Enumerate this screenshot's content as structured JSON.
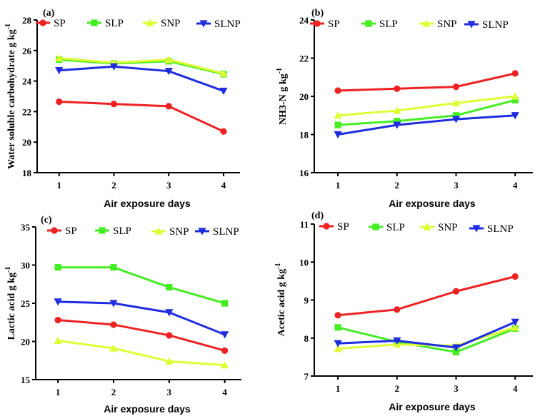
{
  "chart_data": [
    {
      "type": "line",
      "panel_label": "(a)",
      "x": [
        1,
        2,
        3,
        4
      ],
      "xlabel": "Air exposure days",
      "ylabel": "Water soluble carbohydrate g kg",
      "ylabel_sup": "-1",
      "ylim": [
        18,
        28
      ],
      "yticks": [
        18,
        20,
        22,
        24,
        26,
        28
      ],
      "legend": "top",
      "series": [
        {
          "name": "SP",
          "values": [
            22.65,
            22.5,
            22.35,
            20.7
          ]
        },
        {
          "name": "SLP",
          "values": [
            25.4,
            25.15,
            25.3,
            24.45
          ]
        },
        {
          "name": "SNP",
          "values": [
            25.5,
            25.2,
            25.4,
            24.5
          ]
        },
        {
          "name": "SLNP",
          "values": [
            24.7,
            24.95,
            24.65,
            23.35
          ]
        }
      ]
    },
    {
      "type": "line",
      "panel_label": "(b)",
      "x": [
        1,
        2,
        3,
        4
      ],
      "xlabel": "Air exposure days",
      "ylabel": "NH3-N g kg",
      "ylabel_sup": "-1",
      "ylim": [
        16,
        24
      ],
      "yticks": [
        16,
        18,
        20,
        22,
        24
      ],
      "legend": "top",
      "series": [
        {
          "name": "SP",
          "values": [
            20.3,
            20.4,
            20.5,
            21.2
          ]
        },
        {
          "name": "SLP",
          "values": [
            18.5,
            18.7,
            19.0,
            19.8
          ]
        },
        {
          "name": "SNP",
          "values": [
            19.0,
            19.25,
            19.65,
            20.0
          ]
        },
        {
          "name": "SLNP",
          "values": [
            18.0,
            18.5,
            18.8,
            19.0
          ]
        }
      ]
    },
    {
      "type": "line",
      "panel_label": "(c)",
      "x": [
        1,
        2,
        3,
        4
      ],
      "xlabel": "Air exposure days",
      "ylabel": "Lactic acid g kg",
      "ylabel_sup": "-1",
      "ylim": [
        15,
        35
      ],
      "yticks": [
        15,
        20,
        25,
        30,
        35
      ],
      "legend": "top",
      "series": [
        {
          "name": "SP",
          "values": [
            22.8,
            22.2,
            20.8,
            18.8
          ]
        },
        {
          "name": "SLP",
          "values": [
            29.7,
            29.7,
            27.1,
            25.0
          ]
        },
        {
          "name": "SNP",
          "values": [
            20.1,
            19.1,
            17.4,
            16.9
          ]
        },
        {
          "name": "SLNP",
          "values": [
            25.2,
            25.0,
            23.8,
            20.9
          ]
        }
      ]
    },
    {
      "type": "line",
      "panel_label": "(d)",
      "x": [
        1,
        2,
        3,
        4
      ],
      "xlabel": "Air exposure days",
      "ylabel": "Acetic acid g kg",
      "ylabel_sup": "-1",
      "ylim": [
        7,
        11
      ],
      "yticks": [
        7,
        8,
        9,
        10,
        11
      ],
      "legend": "top",
      "series": [
        {
          "name": "SP",
          "values": [
            8.6,
            8.75,
            9.23,
            9.62
          ]
        },
        {
          "name": "SLP",
          "values": [
            8.28,
            7.9,
            7.63,
            8.25
          ]
        },
        {
          "name": "SNP",
          "values": [
            7.72,
            7.83,
            7.8,
            8.28
          ]
        },
        {
          "name": "SLNP",
          "values": [
            7.86,
            7.93,
            7.75,
            8.42
          ]
        }
      ]
    }
  ],
  "colors": {
    "SP": "#ee2222",
    "SLP": "#44ee22",
    "SNP": "#ddff33",
    "SLNP": "#1f2ce0"
  },
  "markers": {
    "SP": "circle",
    "SLP": "square",
    "SNP": "triangle-up",
    "SLNP": "triangle-down"
  }
}
